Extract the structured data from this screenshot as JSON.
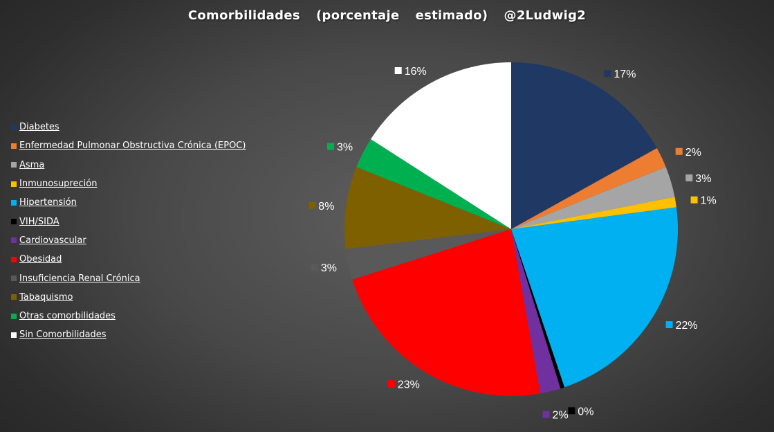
{
  "chart_data": {
    "type": "pie",
    "title": "Comorbilidades  (porcentaje  estimado)  @2Ludwig2",
    "legend_position": "left",
    "start_angle_deg": 0,
    "direction": "clockwise",
    "slices": [
      {
        "name": "Diabetes",
        "value": 17,
        "label": "17%",
        "color": "#203864"
      },
      {
        "name": "Enfermedad Pulmonar  Obstructiva Crónica (EPOC)",
        "value": 2,
        "label": "2%",
        "color": "#ED7D31"
      },
      {
        "name": "Asma",
        "value": 3,
        "label": "3%",
        "color": "#A5A5A5"
      },
      {
        "name": "Inmunosupreción",
        "value": 1,
        "label": "1%",
        "color": "#FFC000"
      },
      {
        "name": "Hipertensión",
        "value": 22,
        "label": "22%",
        "color": "#00B0F0"
      },
      {
        "name": "VIH/SIDA",
        "value": 0.4,
        "label": "0%",
        "color": "#000000"
      },
      {
        "name": "Cardiovascular",
        "value": 2,
        "label": "2%",
        "color": "#7030A0"
      },
      {
        "name": "Obesidad",
        "value": 23,
        "label": "23%",
        "color": "#FF0000"
      },
      {
        "name": "Insuficiencia Renal Crónica",
        "value": 3,
        "label": "3%",
        "color": "#595959"
      },
      {
        "name": "Tabaquismo",
        "value": 8,
        "label": "8%",
        "color": "#7F6000"
      },
      {
        "name": "Otras comorbilidades",
        "value": 3,
        "label": "3%",
        "color": "#00B050"
      },
      {
        "name": "Sin Comorbilidades",
        "value": 16,
        "label": "16%",
        "color": "#FFFFFF"
      }
    ]
  }
}
